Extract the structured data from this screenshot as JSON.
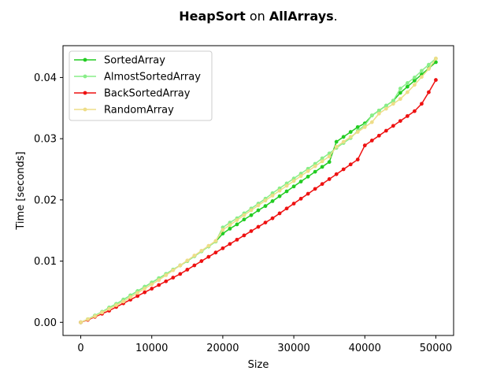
{
  "chart_data": {
    "type": "line",
    "title_parts": [
      {
        "text": "HeapSort",
        "bold": true
      },
      {
        "text": " on ",
        "bold": false
      },
      {
        "text": "AllArrays",
        "bold": true
      },
      {
        "text": ".",
        "bold": false
      }
    ],
    "xlabel": "Size",
    "ylabel": "Time [seconds]",
    "xlim": [
      -2500,
      52500
    ],
    "ylim": [
      -0.00215,
      0.0452
    ],
    "xticks": [
      0,
      10000,
      20000,
      30000,
      40000,
      50000
    ],
    "xtick_labels": [
      "0",
      "10000",
      "20000",
      "30000",
      "40000",
      "50000"
    ],
    "yticks": [
      0.0,
      0.01,
      0.02,
      0.03,
      0.04
    ],
    "ytick_labels": [
      "0.00",
      "0.01",
      "0.02",
      "0.03",
      "0.04"
    ],
    "grid": false,
    "legend_position": "upper-left",
    "x": [
      0,
      1000,
      2000,
      3000,
      4000,
      5000,
      6000,
      7000,
      8000,
      9000,
      10000,
      11000,
      12000,
      13000,
      14000,
      15000,
      16000,
      17000,
      18000,
      19000,
      20000,
      21000,
      22000,
      23000,
      24000,
      25000,
      26000,
      27000,
      28000,
      29000,
      30000,
      31000,
      32000,
      33000,
      34000,
      35000,
      36000,
      37000,
      38000,
      39000,
      40000,
      41000,
      42000,
      43000,
      44000,
      45000,
      46000,
      47000,
      48000,
      49000,
      50000
    ],
    "series": [
      {
        "name": "SortedArray",
        "color": "#22cc22",
        "values": [
          0.0,
          0.0005,
          0.0011,
          0.0017,
          0.0024,
          0.003,
          0.0037,
          0.0044,
          0.0051,
          0.0058,
          0.0065,
          0.0072,
          0.0079,
          0.0086,
          0.0093,
          0.01,
          0.0108,
          0.0116,
          0.0124,
          0.0132,
          0.0145,
          0.0153,
          0.016,
          0.0168,
          0.0175,
          0.0183,
          0.019,
          0.0198,
          0.0206,
          0.0214,
          0.0222,
          0.023,
          0.0238,
          0.0246,
          0.0254,
          0.0262,
          0.0295,
          0.0303,
          0.0311,
          0.0319,
          0.0325,
          0.0338,
          0.0346,
          0.0354,
          0.0362,
          0.0375,
          0.0385,
          0.0395,
          0.0405,
          0.0415,
          0.0425
        ]
      },
      {
        "name": "AlmostSortedArray",
        "color": "#88ee88",
        "values": [
          0.0,
          0.0005,
          0.0011,
          0.0017,
          0.0024,
          0.003,
          0.0037,
          0.0044,
          0.0051,
          0.0058,
          0.0065,
          0.0072,
          0.0079,
          0.0086,
          0.0093,
          0.01,
          0.0108,
          0.0116,
          0.0124,
          0.0132,
          0.0155,
          0.0163,
          0.017,
          0.0178,
          0.0186,
          0.0194,
          0.0202,
          0.0211,
          0.0219,
          0.0227,
          0.0235,
          0.0243,
          0.0251,
          0.0259,
          0.0268,
          0.0276,
          0.0285,
          0.0293,
          0.0301,
          0.0313,
          0.0322,
          0.0338,
          0.0346,
          0.0354,
          0.0362,
          0.0382,
          0.0391,
          0.04,
          0.0411,
          0.0421,
          0.0431
        ]
      },
      {
        "name": "BackSortedArray",
        "color": "#ee1111",
        "values": [
          0.0,
          0.0004,
          0.0009,
          0.0014,
          0.0019,
          0.0025,
          0.0031,
          0.0037,
          0.0043,
          0.0049,
          0.0055,
          0.0061,
          0.0067,
          0.0073,
          0.0079,
          0.0086,
          0.0093,
          0.01,
          0.0107,
          0.0114,
          0.0121,
          0.0128,
          0.0135,
          0.0142,
          0.0149,
          0.0156,
          0.0163,
          0.017,
          0.0178,
          0.0186,
          0.0194,
          0.0202,
          0.021,
          0.0218,
          0.0226,
          0.0234,
          0.0242,
          0.025,
          0.0258,
          0.0266,
          0.0289,
          0.0297,
          0.0305,
          0.0313,
          0.0321,
          0.0329,
          0.0337,
          0.0345,
          0.0357,
          0.0376,
          0.0396
        ]
      },
      {
        "name": "RandomArray",
        "color": "#eedd88",
        "values": [
          0.0,
          0.0005,
          0.001,
          0.0016,
          0.0022,
          0.0028,
          0.0034,
          0.0041,
          0.0048,
          0.0055,
          0.0062,
          0.0069,
          0.0077,
          0.0085,
          0.0093,
          0.0101,
          0.0109,
          0.0117,
          0.0125,
          0.0133,
          0.0151,
          0.0159,
          0.0167,
          0.0175,
          0.0183,
          0.0191,
          0.0199,
          0.0207,
          0.0215,
          0.0223,
          0.0231,
          0.0239,
          0.0247,
          0.0255,
          0.0263,
          0.0271,
          0.0287,
          0.0295,
          0.0303,
          0.0311,
          0.0319,
          0.0327,
          0.0341,
          0.0349,
          0.0357,
          0.0365,
          0.0376,
          0.0388,
          0.0401,
          0.0414,
          0.0431
        ]
      }
    ]
  }
}
